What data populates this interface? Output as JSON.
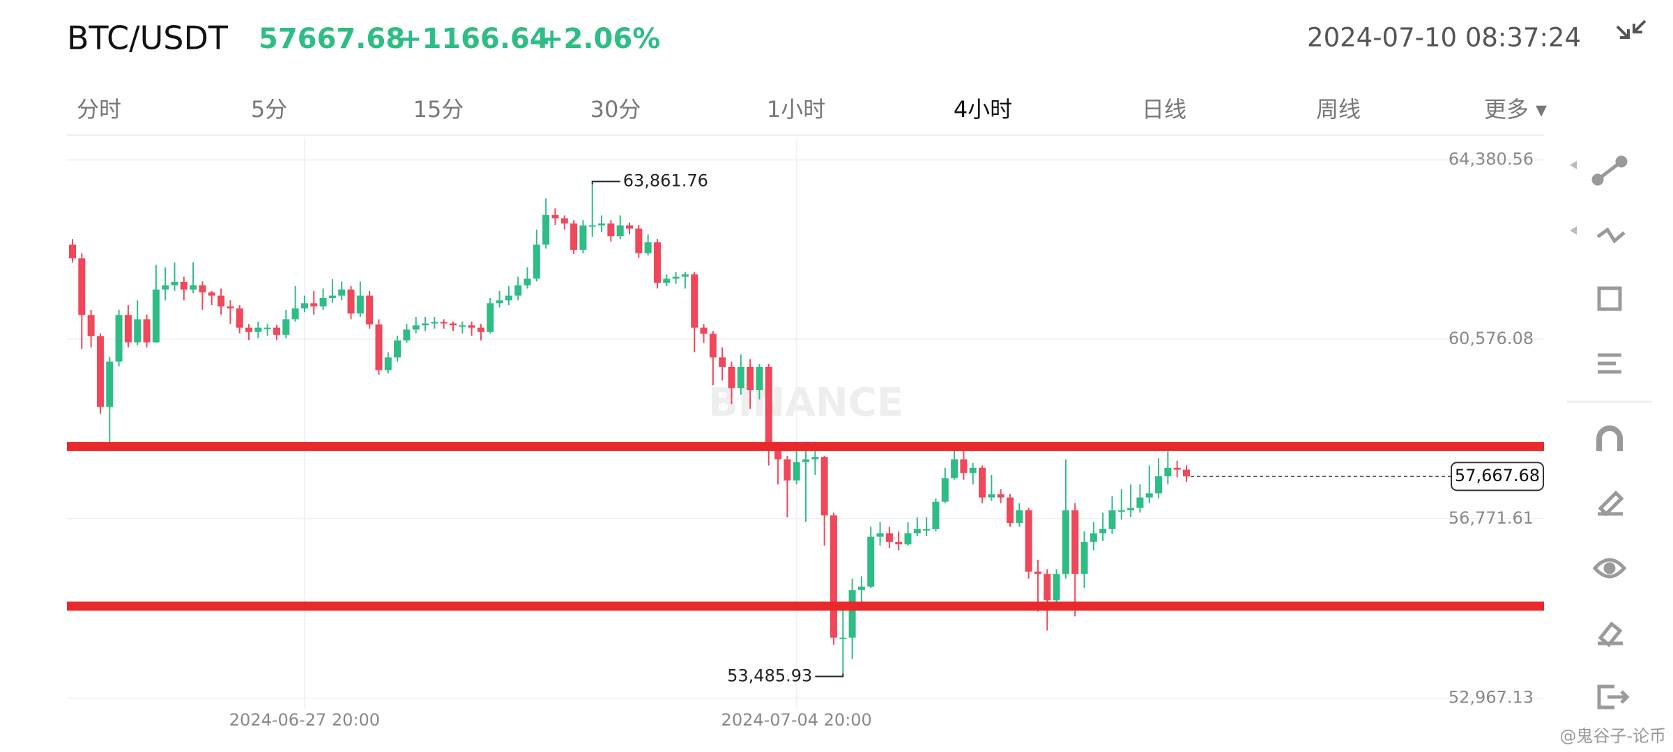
{
  "header": {
    "symbol": "BTC/USDT",
    "price": "57667.68",
    "change": "+1166.64",
    "change_pct": "+2.06%",
    "datetime": "2024-07-10 08:37:24"
  },
  "tabs": [
    "分时",
    "5分",
    "15分",
    "30分",
    "1小时",
    "4小时",
    "日线",
    "周线",
    "更多 ▾"
  ],
  "active_tab": 5,
  "watermark": "BINANCE",
  "credit": "@鬼谷子-论币",
  "chart_data": {
    "type": "candlestick",
    "up_color": "#2ebd85",
    "down_color": "#f0475b",
    "categories": [
      null,
      null,
      null,
      null,
      null,
      null,
      null,
      null,
      null,
      null,
      null,
      null,
      null,
      null,
      null,
      null,
      null,
      null,
      null,
      null,
      null,
      null,
      null,
      null,
      null,
      "2024-06-27 20:00",
      null,
      null,
      null,
      null,
      null,
      null,
      null,
      null,
      null,
      null,
      null,
      null,
      null,
      null,
      null,
      null,
      null,
      null,
      null,
      null,
      null,
      null,
      null,
      null,
      null,
      null,
      null,
      null,
      null,
      null,
      null,
      null,
      null,
      null,
      null,
      null,
      null,
      null,
      null,
      null,
      null,
      null,
      null,
      null,
      null,
      null,
      null,
      null,
      null,
      null,
      null,
      null,
      "2024-07-04 20:00",
      null,
      null,
      null,
      null,
      null,
      null,
      null,
      null,
      null,
      null,
      null,
      null,
      null,
      null,
      null,
      null,
      null,
      null,
      null,
      null,
      null,
      null,
      null,
      null,
      null,
      null,
      null,
      null,
      null,
      null,
      null,
      null,
      null,
      null,
      null,
      null,
      null,
      null,
      null,
      null,
      null,
      null
    ],
    "open": [
      62580,
      62290,
      61090,
      60640,
      59140,
      60100,
      61090,
      60510,
      61000,
      60510,
      61630,
      61720,
      61790,
      61630,
      61720,
      61570,
      61500,
      61270,
      61230,
      60820,
      60730,
      60820,
      60820,
      60670,
      61000,
      61230,
      61340,
      61270,
      61450,
      61500,
      61630,
      61120,
      61500,
      60890,
      59920,
      60190,
      60550,
      60780,
      60870,
      60910,
      60940,
      60910,
      60870,
      60870,
      60820,
      60730,
      61340,
      61400,
      61500,
      61720,
      61860,
      62580,
      63210,
      63140,
      63030,
      62470,
      62990,
      62990,
      63030,
      62760,
      62990,
      62920,
      62400,
      62630,
      61770,
      61860,
      61900,
      61950,
      60820,
      60690,
      60190,
      59990,
      59540,
      59990,
      59500,
      59990,
      58300,
      58030,
      57580,
      57970,
      58030,
      58080,
      56840,
      54250,
      54250,
      55260,
      55330,
      56390,
      56460,
      56280,
      56230,
      56460,
      56550,
      56550,
      57130,
      57630,
      58030,
      57740,
      57850,
      57220,
      57290,
      57220,
      56680,
      56950,
      55650,
      55600,
      55040,
      55600,
      56950,
      55600,
      56280,
      56460,
      56550,
      56950,
      56950,
      57000,
      57220,
      57310,
      57670,
      57850,
      57810
    ],
    "high": [
      62700,
      62400,
      61200,
      60700,
      60200,
      61200,
      61300,
      61400,
      61100,
      62150,
      62100,
      62200,
      61900,
      62210,
      61800,
      61600,
      61650,
      61400,
      61300,
      60900,
      60950,
      60900,
      60880,
      61200,
      61700,
      61500,
      61600,
      61650,
      61850,
      61800,
      61700,
      61800,
      61600,
      61000,
      60300,
      60650,
      60900,
      61050,
      61050,
      61050,
      61000,
      60950,
      60950,
      60950,
      60900,
      61450,
      61600,
      61700,
      61900,
      62100,
      62900,
      63560,
      63350,
      63200,
      63100,
      63100,
      63861.76,
      63200,
      63100,
      63200,
      63050,
      63000,
      62800,
      62700,
      61950,
      62000,
      62000,
      62000,
      60900,
      60750,
      60400,
      60100,
      60250,
      60150,
      60050,
      60050,
      58400,
      58100,
      58200,
      58400,
      58400,
      58100,
      56900,
      54900,
      55500,
      55550,
      56600,
      56700,
      56600,
      56500,
      56700,
      56800,
      56800,
      57200,
      57850,
      58300,
      58300,
      57950,
      57900,
      57700,
      57400,
      57300,
      57100,
      57000,
      55900,
      55700,
      55700,
      58030,
      57100,
      56500,
      56700,
      56900,
      57250,
      57400,
      57500,
      57500,
      57900,
      58050,
      58200,
      58000,
      57900
    ],
    "low": [
      62200,
      60370,
      60400,
      58990,
      58300,
      60000,
      60400,
      60450,
      60400,
      60500,
      61400,
      61600,
      61400,
      61550,
      61200,
      61300,
      61100,
      60900,
      60700,
      60560,
      60600,
      60650,
      60560,
      60600,
      60950,
      61150,
      61100,
      61200,
      61350,
      61400,
      61000,
      61050,
      60800,
      59820,
      59850,
      60100,
      60500,
      60700,
      60750,
      60800,
      60800,
      60750,
      60700,
      60650,
      60550,
      60700,
      61250,
      61300,
      61400,
      61650,
      61800,
      62500,
      63000,
      62900,
      62380,
      62400,
      62750,
      62850,
      62650,
      62700,
      62800,
      62300,
      62350,
      61650,
      61700,
      61750,
      61650,
      60300,
      60500,
      59600,
      59700,
      59200,
      59400,
      59100,
      59300,
      57900,
      57500,
      56800,
      57500,
      56700,
      57700,
      56200,
      54100,
      53485.93,
      53800,
      54900,
      55300,
      56200,
      56150,
      56100,
      56200,
      56400,
      56400,
      56500,
      57100,
      57600,
      57600,
      57500,
      57100,
      57150,
      57100,
      56600,
      56600,
      55500,
      54800,
      54400,
      54900,
      55500,
      54700,
      55300,
      56100,
      56300,
      56450,
      56750,
      56800,
      56900,
      57100,
      57200,
      57500,
      57650,
      57550
    ],
    "close": [
      62290,
      61090,
      60640,
      59140,
      60100,
      61090,
      60510,
      61000,
      60510,
      61630,
      61720,
      61790,
      61630,
      61720,
      61570,
      61500,
      61270,
      61230,
      60820,
      60730,
      60820,
      60820,
      60670,
      61000,
      61230,
      61340,
      61270,
      61450,
      61500,
      61630,
      61120,
      61500,
      60890,
      59920,
      60190,
      60550,
      60780,
      60870,
      60910,
      60940,
      60910,
      60870,
      60870,
      60820,
      60730,
      61340,
      61400,
      61500,
      61720,
      61860,
      62580,
      63210,
      63140,
      63030,
      62470,
      62990,
      62990,
      63030,
      62760,
      62990,
      62920,
      62400,
      62630,
      61770,
      61860,
      61900,
      61950,
      60820,
      60690,
      60190,
      59990,
      59540,
      59990,
      59500,
      59990,
      58300,
      58030,
      57580,
      57970,
      58030,
      58080,
      56840,
      54250,
      54250,
      55260,
      55330,
      56390,
      56460,
      56280,
      56230,
      56460,
      56550,
      56550,
      57130,
      57630,
      58030,
      57740,
      57850,
      57220,
      57290,
      57220,
      56680,
      56950,
      55650,
      55600,
      55040,
      55600,
      56950,
      55600,
      56280,
      56460,
      56550,
      56950,
      56950,
      57000,
      57220,
      57310,
      57670,
      57850,
      57810,
      57667.68
    ],
    "high_label": "63,861.76",
    "low_label": "53,485.93",
    "last_price_label": "57,667.68",
    "ylim": [
      52740,
      64830
    ],
    "yticks": [
      {
        "value": 52967.13,
        "label": "52,967.13"
      },
      {
        "value": 56771.61,
        "label": "56,771.61"
      },
      {
        "value": 60576.08,
        "label": "60,576.08"
      },
      {
        "value": 64380.56,
        "label": "64,380.56"
      }
    ],
    "grid": true,
    "hlines": [
      {
        "value": 58300,
        "color": "#e8282b"
      },
      {
        "value": 54920,
        "color": "#e8282b"
      }
    ]
  }
}
